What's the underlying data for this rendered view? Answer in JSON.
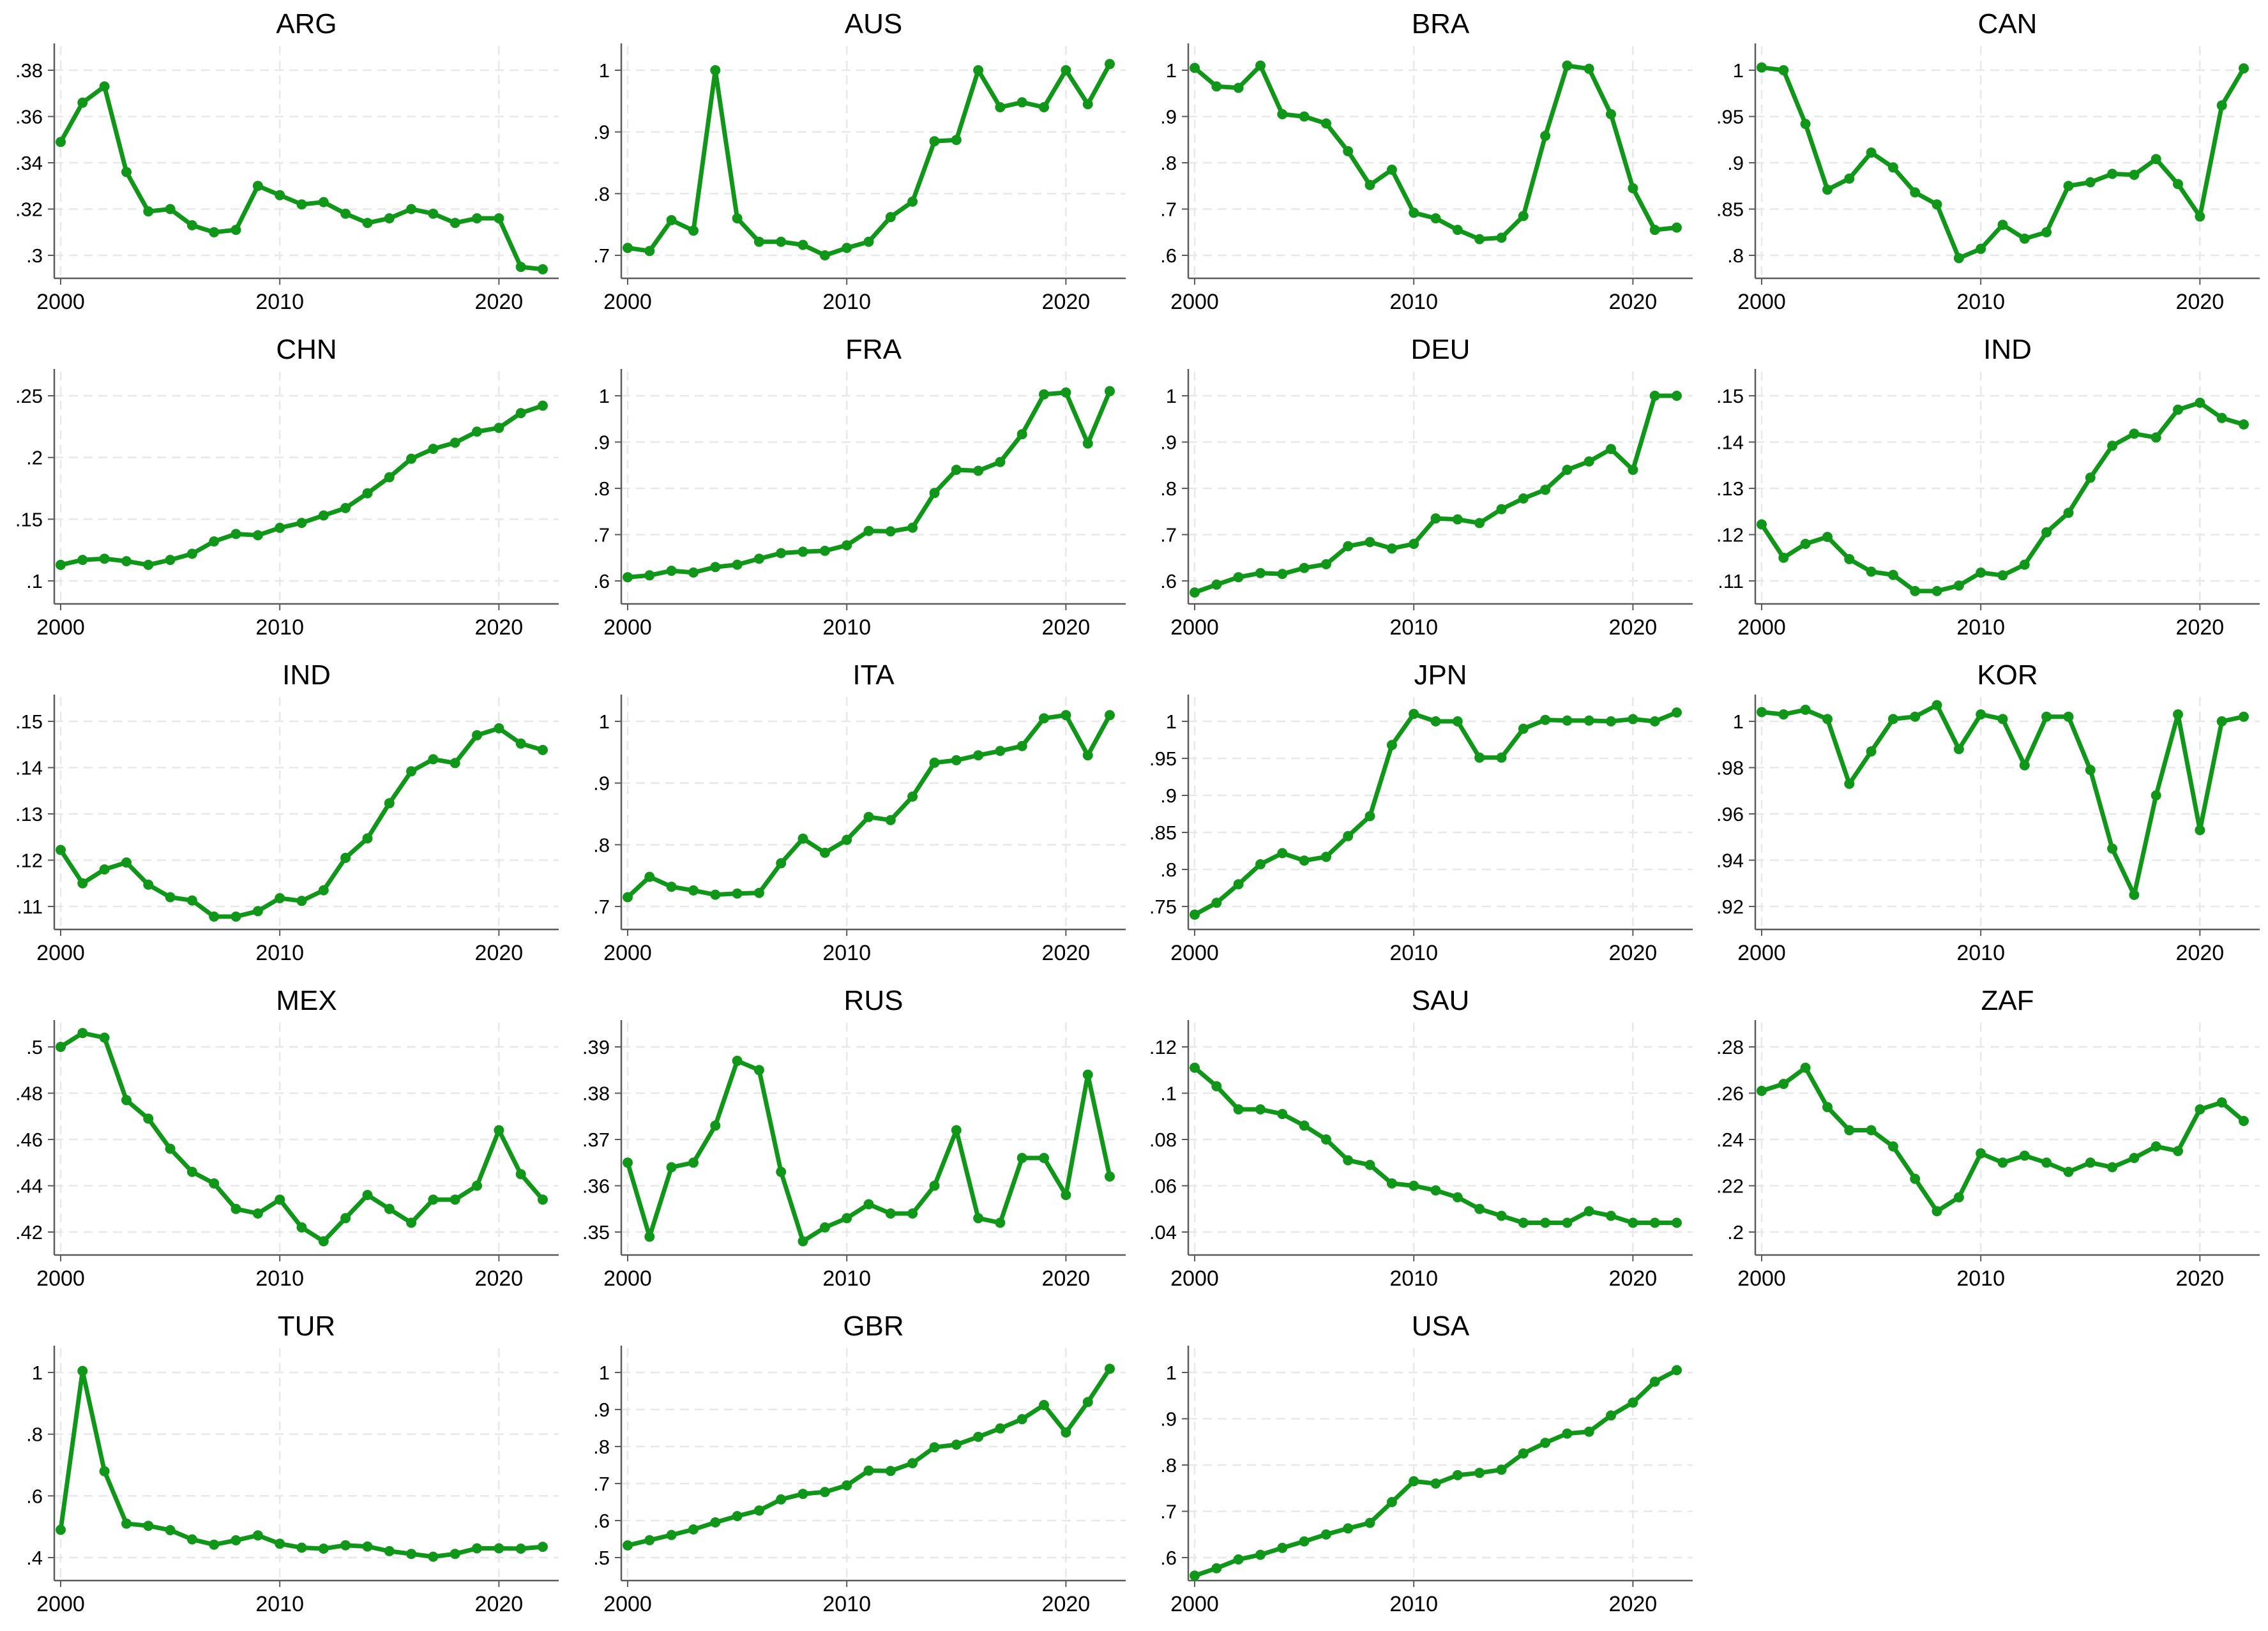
{
  "chart_data": {
    "type": "line",
    "description": "Small-multiples grid of yearly time-series line charts per country, green line with circular markers, dashed light gridlines, Stata-style axes",
    "layout": {
      "columns": 4,
      "rows": 5,
      "legend": false,
      "grid": "dashed horizontal and vertical gridlines at axis ticks",
      "line_color": "#109618",
      "grid_color": "#e8e8e8",
      "axis_color": "#5a5a5a",
      "text_color": "#000000",
      "background": "#ffffff"
    },
    "x": [
      2000,
      2001,
      2002,
      2003,
      2004,
      2005,
      2006,
      2007,
      2008,
      2009,
      2010,
      2011,
      2012,
      2013,
      2014,
      2015,
      2016,
      2017,
      2018,
      2019,
      2020,
      2021,
      2022
    ],
    "x_ticks": [
      {
        "v": 2000,
        "label": "2000"
      },
      {
        "v": 2010,
        "label": "2010"
      },
      {
        "v": 2020,
        "label": "2020"
      }
    ],
    "charts": [
      {
        "title": "ARG",
        "ylim_ticks": [
          0.3,
          0.38
        ],
        "y_ticks": [
          {
            "v": 0.3,
            "label": ".3"
          },
          {
            "v": 0.32,
            "label": ".32"
          },
          {
            "v": 0.34,
            "label": ".34"
          },
          {
            "v": 0.36,
            "label": ".36"
          },
          {
            "v": 0.38,
            "label": ".38"
          }
        ],
        "values": [
          0.349,
          0.366,
          0.373,
          0.336,
          0.319,
          0.32,
          0.313,
          0.31,
          0.311,
          0.33,
          0.326,
          0.322,
          0.323,
          0.318,
          0.314,
          0.316,
          0.32,
          0.318,
          0.314,
          0.316,
          0.316,
          0.295,
          0.294
        ]
      },
      {
        "title": "AUS",
        "ylim_ticks": [
          0.7,
          1.0
        ],
        "y_ticks": [
          {
            "v": 0.7,
            "label": ".7"
          },
          {
            "v": 0.8,
            "label": ".8"
          },
          {
            "v": 0.9,
            "label": ".9"
          },
          {
            "v": 1.0,
            "label": "1"
          }
        ],
        "values": [
          0.712,
          0.707,
          0.757,
          0.74,
          1.0,
          0.76,
          0.722,
          0.722,
          0.717,
          0.7,
          0.712,
          0.722,
          0.762,
          0.787,
          0.885,
          0.887,
          1.0,
          0.94,
          0.948,
          0.94,
          1.0,
          0.945,
          1.01
        ]
      },
      {
        "title": "BRA",
        "ylim_ticks": [
          0.6,
          1.0
        ],
        "y_ticks": [
          {
            "v": 0.6,
            "label": ".6"
          },
          {
            "v": 0.7,
            "label": ".7"
          },
          {
            "v": 0.8,
            "label": ".8"
          },
          {
            "v": 0.9,
            "label": ".9"
          },
          {
            "v": 1.0,
            "label": "1"
          }
        ],
        "values": [
          1.005,
          0.965,
          0.962,
          1.01,
          0.905,
          0.9,
          0.885,
          0.825,
          0.752,
          0.785,
          0.692,
          0.68,
          0.655,
          0.635,
          0.638,
          0.685,
          0.858,
          1.01,
          1.003,
          0.905,
          0.745,
          0.655,
          0.66
        ]
      },
      {
        "title": "CAN",
        "ylim_ticks": [
          0.8,
          1.0
        ],
        "y_ticks": [
          {
            "v": 0.8,
            "label": ".8"
          },
          {
            "v": 0.85,
            "label": ".85"
          },
          {
            "v": 0.9,
            "label": ".9"
          },
          {
            "v": 0.95,
            "label": ".95"
          },
          {
            "v": 1.0,
            "label": "1"
          }
        ],
        "values": [
          1.003,
          1.0,
          0.942,
          0.871,
          0.883,
          0.911,
          0.895,
          0.868,
          0.855,
          0.797,
          0.807,
          0.833,
          0.818,
          0.825,
          0.875,
          0.879,
          0.888,
          0.887,
          0.904,
          0.877,
          0.842,
          0.962,
          1.002
        ]
      },
      {
        "title": "CHN",
        "ylim_ticks": [
          0.1,
          0.25
        ],
        "y_ticks": [
          {
            "v": 0.1,
            "label": ".1"
          },
          {
            "v": 0.15,
            "label": ".15"
          },
          {
            "v": 0.2,
            "label": ".2"
          },
          {
            "v": 0.25,
            "label": ".25"
          }
        ],
        "values": [
          0.113,
          0.117,
          0.118,
          0.116,
          0.113,
          0.117,
          0.122,
          0.132,
          0.138,
          0.137,
          0.143,
          0.147,
          0.153,
          0.159,
          0.171,
          0.184,
          0.199,
          0.207,
          0.212,
          0.221,
          0.224,
          0.236,
          0.242
        ]
      },
      {
        "title": "FRA",
        "ylim_ticks": [
          0.6,
          1.0
        ],
        "y_ticks": [
          {
            "v": 0.6,
            "label": ".6"
          },
          {
            "v": 0.7,
            "label": ".7"
          },
          {
            "v": 0.8,
            "label": ".8"
          },
          {
            "v": 0.9,
            "label": ".9"
          },
          {
            "v": 1.0,
            "label": "1"
          }
        ],
        "values": [
          0.608,
          0.612,
          0.622,
          0.618,
          0.63,
          0.635,
          0.648,
          0.66,
          0.663,
          0.665,
          0.677,
          0.708,
          0.707,
          0.715,
          0.79,
          0.84,
          0.838,
          0.857,
          0.917,
          1.003,
          1.007,
          0.897,
          1.01
        ]
      },
      {
        "title": "DEU",
        "ylim_ticks": [
          0.6,
          1.0
        ],
        "y_ticks": [
          {
            "v": 0.6,
            "label": ".6"
          },
          {
            "v": 0.7,
            "label": ".7"
          },
          {
            "v": 0.8,
            "label": ".8"
          },
          {
            "v": 0.9,
            "label": ".9"
          },
          {
            "v": 1.0,
            "label": "1"
          }
        ],
        "values": [
          0.575,
          0.592,
          0.608,
          0.617,
          0.615,
          0.628,
          0.636,
          0.675,
          0.684,
          0.67,
          0.68,
          0.735,
          0.733,
          0.725,
          0.755,
          0.778,
          0.797,
          0.84,
          0.858,
          0.885,
          0.84,
          1.0,
          1.0
        ]
      },
      {
        "title": "IND",
        "ylim_ticks": [
          0.11,
          0.15
        ],
        "y_ticks": [
          {
            "v": 0.11,
            "label": ".11"
          },
          {
            "v": 0.12,
            "label": ".12"
          },
          {
            "v": 0.13,
            "label": ".13"
          },
          {
            "v": 0.14,
            "label": ".14"
          },
          {
            "v": 0.15,
            "label": ".15"
          }
        ],
        "values": [
          0.1222,
          0.115,
          0.118,
          0.1195,
          0.1147,
          0.112,
          0.1113,
          0.1078,
          0.1078,
          0.109,
          0.1118,
          0.1112,
          0.1135,
          0.1205,
          0.1247,
          0.1323,
          0.1392,
          0.1418,
          0.141,
          0.147,
          0.1485,
          0.1452,
          0.1438
        ]
      },
      {
        "title": "IND",
        "ylim_ticks": [
          0.11,
          0.15
        ],
        "y_ticks": [
          {
            "v": 0.11,
            "label": ".11"
          },
          {
            "v": 0.12,
            "label": ".12"
          },
          {
            "v": 0.13,
            "label": ".13"
          },
          {
            "v": 0.14,
            "label": ".14"
          },
          {
            "v": 0.15,
            "label": ".15"
          }
        ],
        "values": [
          0.1222,
          0.115,
          0.118,
          0.1195,
          0.1147,
          0.112,
          0.1113,
          0.1078,
          0.1078,
          0.109,
          0.1118,
          0.1112,
          0.1135,
          0.1205,
          0.1247,
          0.1323,
          0.1392,
          0.1418,
          0.141,
          0.147,
          0.1485,
          0.1452,
          0.1438
        ]
      },
      {
        "title": "ITA",
        "ylim_ticks": [
          0.7,
          1.0
        ],
        "y_ticks": [
          {
            "v": 0.7,
            "label": ".7"
          },
          {
            "v": 0.8,
            "label": ".8"
          },
          {
            "v": 0.9,
            "label": ".9"
          },
          {
            "v": 1.0,
            "label": "1"
          }
        ],
        "values": [
          0.715,
          0.748,
          0.732,
          0.726,
          0.719,
          0.721,
          0.722,
          0.77,
          0.81,
          0.787,
          0.808,
          0.845,
          0.84,
          0.878,
          0.933,
          0.937,
          0.945,
          0.952,
          0.96,
          1.005,
          1.01,
          0.945,
          1.01
        ]
      },
      {
        "title": "JPN",
        "ylim_ticks": [
          0.75,
          1.0
        ],
        "y_ticks": [
          {
            "v": 0.75,
            "label": ".75"
          },
          {
            "v": 0.8,
            "label": ".8"
          },
          {
            "v": 0.85,
            "label": ".85"
          },
          {
            "v": 0.9,
            "label": ".9"
          },
          {
            "v": 0.95,
            "label": ".95"
          },
          {
            "v": 1.0,
            "label": "1"
          }
        ],
        "values": [
          0.739,
          0.755,
          0.78,
          0.807,
          0.822,
          0.812,
          0.817,
          0.845,
          0.872,
          0.968,
          1.01,
          1.0,
          1.0,
          0.951,
          0.951,
          0.99,
          1.002,
          1.001,
          1.001,
          1.0,
          1.003,
          1.0,
          1.012
        ]
      },
      {
        "title": "KOR",
        "ylim_ticks": [
          0.92,
          1.0
        ],
        "y_ticks": [
          {
            "v": 0.92,
            "label": ".92"
          },
          {
            "v": 0.94,
            "label": ".94"
          },
          {
            "v": 0.96,
            "label": ".96"
          },
          {
            "v": 0.98,
            "label": ".98"
          },
          {
            "v": 1.0,
            "label": "1"
          }
        ],
        "values": [
          1.004,
          1.003,
          1.005,
          1.001,
          0.973,
          0.987,
          1.001,
          1.002,
          1.007,
          0.988,
          1.003,
          1.001,
          0.981,
          1.002,
          1.002,
          0.979,
          0.945,
          0.925,
          0.968,
          1.003,
          0.953,
          1.0,
          1.002
        ]
      },
      {
        "title": "MEX",
        "ylim_ticks": [
          0.42,
          0.5
        ],
        "y_ticks": [
          {
            "v": 0.42,
            "label": ".42"
          },
          {
            "v": 0.44,
            "label": ".44"
          },
          {
            "v": 0.46,
            "label": ".46"
          },
          {
            "v": 0.48,
            "label": ".48"
          },
          {
            "v": 0.5,
            "label": ".5"
          }
        ],
        "values": [
          0.5,
          0.506,
          0.504,
          0.477,
          0.469,
          0.456,
          0.446,
          0.441,
          0.43,
          0.428,
          0.434,
          0.422,
          0.416,
          0.426,
          0.436,
          0.43,
          0.424,
          0.434,
          0.434,
          0.44,
          0.464,
          0.445,
          0.434
        ]
      },
      {
        "title": "RUS",
        "ylim_ticks": [
          0.35,
          0.39
        ],
        "y_ticks": [
          {
            "v": 0.35,
            "label": ".35"
          },
          {
            "v": 0.36,
            "label": ".36"
          },
          {
            "v": 0.37,
            "label": ".37"
          },
          {
            "v": 0.38,
            "label": ".38"
          },
          {
            "v": 0.39,
            "label": ".39"
          }
        ],
        "values": [
          0.365,
          0.349,
          0.364,
          0.365,
          0.373,
          0.387,
          0.385,
          0.363,
          0.348,
          0.351,
          0.353,
          0.356,
          0.354,
          0.354,
          0.36,
          0.372,
          0.353,
          0.352,
          0.366,
          0.366,
          0.358,
          0.384,
          0.362
        ]
      },
      {
        "title": "SAU",
        "ylim_ticks": [
          0.04,
          0.12
        ],
        "y_ticks": [
          {
            "v": 0.04,
            "label": ".04"
          },
          {
            "v": 0.06,
            "label": ".06"
          },
          {
            "v": 0.08,
            "label": ".08"
          },
          {
            "v": 0.1,
            "label": ".1"
          },
          {
            "v": 0.12,
            "label": ".12"
          }
        ],
        "values": [
          0.111,
          0.103,
          0.093,
          0.093,
          0.091,
          0.086,
          0.08,
          0.071,
          0.069,
          0.061,
          0.06,
          0.058,
          0.055,
          0.05,
          0.047,
          0.044,
          0.044,
          0.044,
          0.049,
          0.047,
          0.044,
          0.044,
          0.044
        ]
      },
      {
        "title": "ZAF",
        "ylim_ticks": [
          0.2,
          0.28
        ],
        "y_ticks": [
          {
            "v": 0.2,
            "label": ".2"
          },
          {
            "v": 0.22,
            "label": ".22"
          },
          {
            "v": 0.24,
            "label": ".24"
          },
          {
            "v": 0.26,
            "label": ".26"
          },
          {
            "v": 0.28,
            "label": ".28"
          }
        ],
        "values": [
          0.261,
          0.264,
          0.271,
          0.254,
          0.244,
          0.244,
          0.237,
          0.223,
          0.209,
          0.215,
          0.234,
          0.23,
          0.233,
          0.23,
          0.226,
          0.23,
          0.228,
          0.232,
          0.237,
          0.235,
          0.253,
          0.256,
          0.248
        ]
      },
      {
        "title": "TUR",
        "ylim_ticks": [
          0.4,
          1.0
        ],
        "y_ticks": [
          {
            "v": 0.4,
            "label": ".4"
          },
          {
            "v": 0.6,
            "label": ".6"
          },
          {
            "v": 0.8,
            "label": ".8"
          },
          {
            "v": 1.0,
            "label": "1"
          }
        ],
        "values": [
          0.49,
          1.005,
          0.68,
          0.51,
          0.503,
          0.489,
          0.459,
          0.442,
          0.456,
          0.472,
          0.445,
          0.432,
          0.429,
          0.44,
          0.436,
          0.421,
          0.412,
          0.403,
          0.412,
          0.43,
          0.43,
          0.429,
          0.435
        ]
      },
      {
        "title": "GBR",
        "ylim_ticks": [
          0.5,
          1.0
        ],
        "y_ticks": [
          {
            "v": 0.5,
            "label": ".5"
          },
          {
            "v": 0.6,
            "label": ".6"
          },
          {
            "v": 0.7,
            "label": ".7"
          },
          {
            "v": 0.8,
            "label": ".8"
          },
          {
            "v": 0.9,
            "label": ".9"
          },
          {
            "v": 1.0,
            "label": "1"
          }
        ],
        "values": [
          0.533,
          0.547,
          0.561,
          0.576,
          0.595,
          0.612,
          0.627,
          0.657,
          0.672,
          0.677,
          0.695,
          0.735,
          0.734,
          0.755,
          0.798,
          0.805,
          0.826,
          0.849,
          0.874,
          0.912,
          0.838,
          0.92,
          1.01
        ]
      },
      {
        "title": "USA",
        "ylim_ticks": [
          0.6,
          1.0
        ],
        "y_ticks": [
          {
            "v": 0.6,
            "label": ".6"
          },
          {
            "v": 0.7,
            "label": ".7"
          },
          {
            "v": 0.8,
            "label": ".8"
          },
          {
            "v": 0.9,
            "label": ".9"
          },
          {
            "v": 1.0,
            "label": "1"
          }
        ],
        "values": [
          0.561,
          0.577,
          0.596,
          0.606,
          0.621,
          0.635,
          0.65,
          0.663,
          0.675,
          0.72,
          0.765,
          0.76,
          0.778,
          0.783,
          0.79,
          0.825,
          0.848,
          0.868,
          0.872,
          0.907,
          0.935,
          0.98,
          1.005
        ]
      }
    ]
  }
}
